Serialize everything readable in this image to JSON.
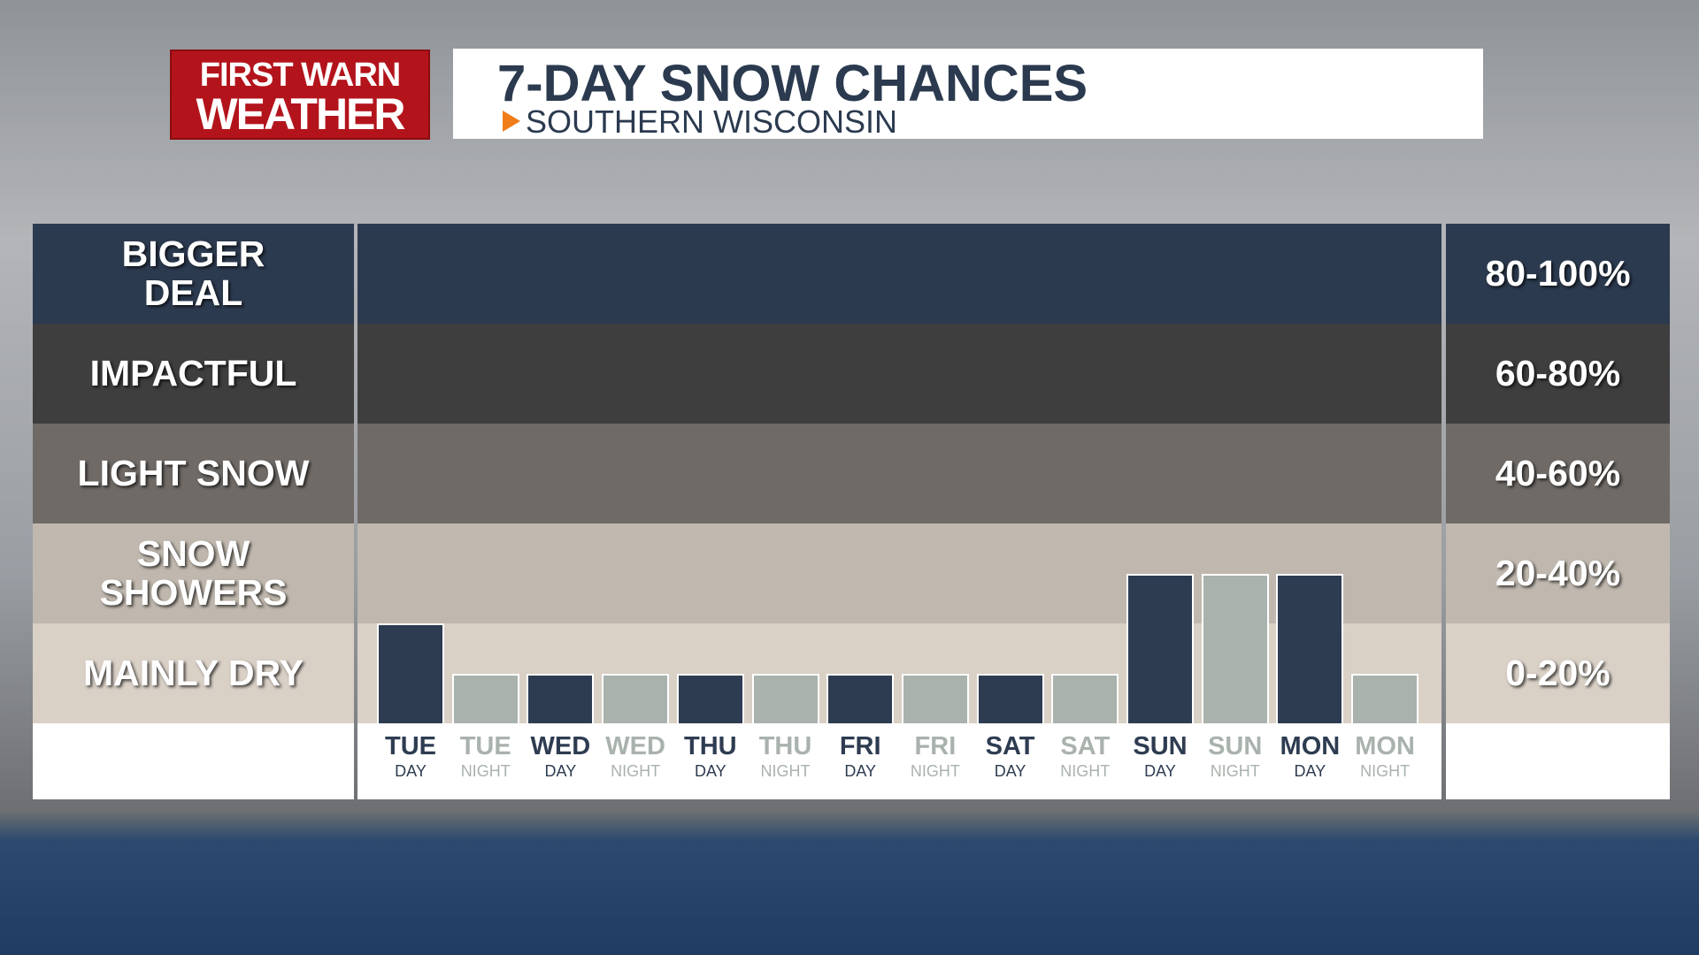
{
  "logo": {
    "line1": "FIRST WARN",
    "line2": "WEATHER"
  },
  "chart_data": {
    "type": "bar",
    "title": "7-DAY SNOW CHANCES",
    "subtitle": "SOUTHERN WISCONSIN",
    "categories": [
      "TUE",
      "TUE",
      "WED",
      "WED",
      "THU",
      "THU",
      "FRI",
      "FRI",
      "SAT",
      "SAT",
      "SUN",
      "SUN",
      "MON",
      "MON"
    ],
    "periods": [
      "DAY",
      "NIGHT",
      "DAY",
      "NIGHT",
      "DAY",
      "NIGHT",
      "DAY",
      "NIGHT",
      "DAY",
      "NIGHT",
      "DAY",
      "NIGHT",
      "DAY",
      "NIGHT"
    ],
    "values": [
      20,
      10,
      10,
      10,
      10,
      10,
      10,
      10,
      10,
      10,
      30,
      30,
      30,
      10
    ],
    "bar_colors": [
      "#2e3c51",
      "#a9b2ac",
      "#2e3c51",
      "#a9b2ac",
      "#2e3c51",
      "#a9b2ac",
      "#2e3c51",
      "#a9b2ac",
      "#2e3c51",
      "#a9b2ac",
      "#2e3c51",
      "#a9b2ac",
      "#2e3c51",
      "#a9b2ac"
    ],
    "ylim": [
      0,
      100
    ],
    "bands": [
      {
        "label": "BIGGER DEAL",
        "range": "80-100%",
        "from": 80,
        "to": 100,
        "color": "#2c3a4f"
      },
      {
        "label": "IMPACTFUL",
        "range": "60-80%",
        "from": 60,
        "to": 80,
        "color": "#3e3e3f"
      },
      {
        "label": "LIGHT SNOW",
        "range": "40-60%",
        "from": 40,
        "to": 60,
        "color": "#6f6a66"
      },
      {
        "label": "SNOW SHOWERS",
        "range": "20-40%",
        "from": 20,
        "to": 40,
        "color": "#c0b8ae"
      },
      {
        "label": "MAINLY DRY",
        "range": "0-20%",
        "from": 0,
        "to": 20,
        "color": "#d9d0c6"
      }
    ]
  }
}
